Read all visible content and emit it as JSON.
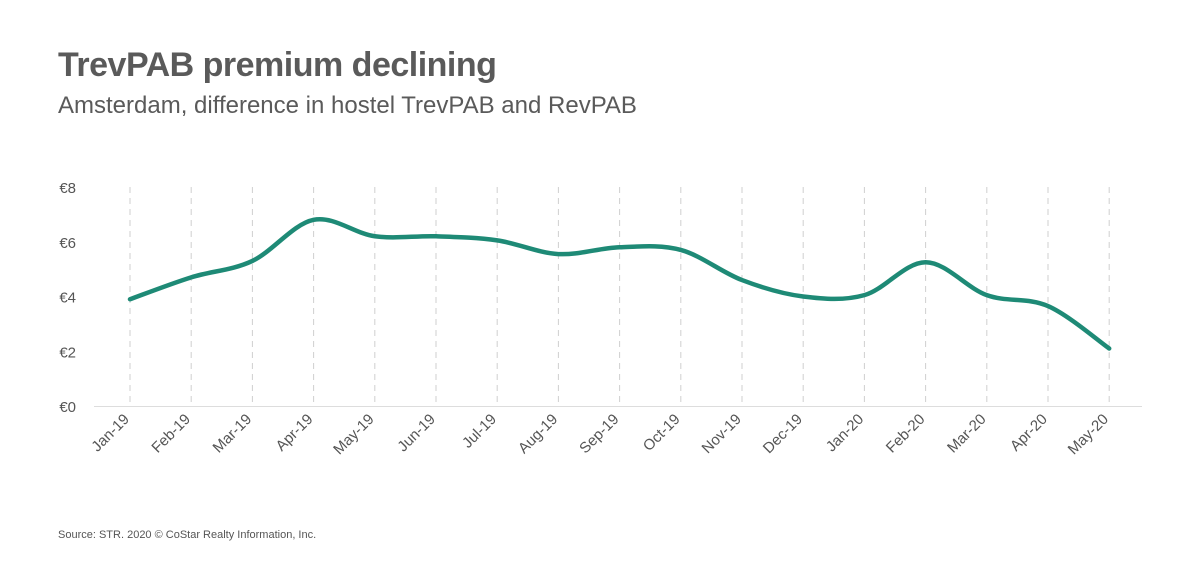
{
  "title": "TrevPAB premium declining",
  "subtitle": "Amsterdam, difference in hostel TrevPAB and RevPAB",
  "source": "Source: STR. 2020 © CoStar Realty Information, Inc.",
  "colors": {
    "line": "#1e8a76",
    "gridline": "#cfcfcf",
    "axis": "#dddddd",
    "text": "#555555"
  },
  "chart_data": {
    "type": "line",
    "title": "TrevPAB premium declining",
    "subtitle": "Amsterdam, difference in hostel TrevPAB and RevPAB",
    "xlabel": "",
    "ylabel": "",
    "categories": [
      "Jan-19",
      "Feb-19",
      "Mar-19",
      "Apr-19",
      "May-19",
      "Jun-19",
      "Jul-19",
      "Aug-19",
      "Sep-19",
      "Oct-19",
      "Nov-19",
      "Dec-19",
      "Jan-20",
      "Feb-20",
      "Mar-20",
      "Apr-20",
      "May-20"
    ],
    "series": [
      {
        "values": [
          3.9,
          4.7,
          5.3,
          6.8,
          6.2,
          6.2,
          6.05,
          5.55,
          5.8,
          5.7,
          4.6,
          4.0,
          4.05,
          5.25,
          4.05,
          3.65,
          2.1
        ]
      }
    ],
    "ylim": [
      0,
      8
    ],
    "yticks": [
      0,
      2,
      4,
      6,
      8
    ],
    "ytick_labels": [
      "€0",
      "€2",
      "€4",
      "€6",
      "€8"
    ],
    "grid": "vertical-dashed",
    "legend": "none"
  }
}
